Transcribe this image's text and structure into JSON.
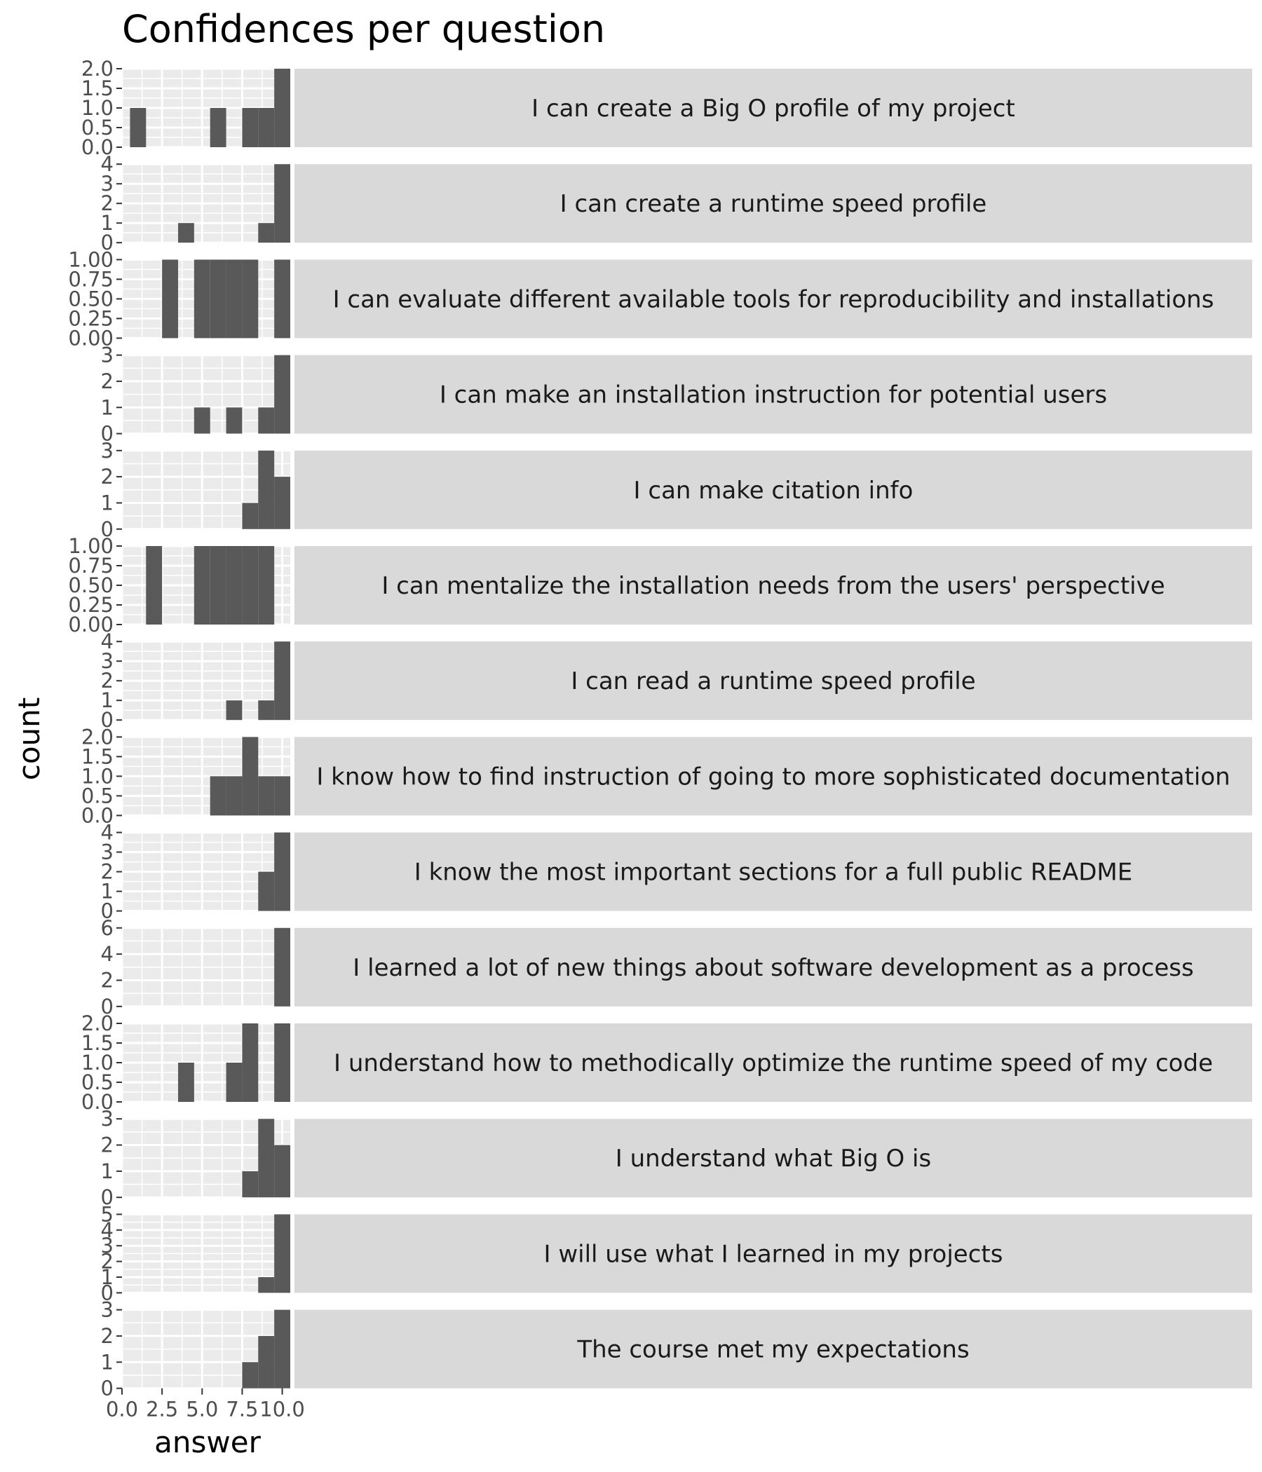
{
  "chart_data": {
    "type": "bar",
    "subtype": "histogram-facets",
    "title": "Confidences per question",
    "xlabel": "answer",
    "ylabel": "count",
    "xlim": [
      0,
      10.5
    ],
    "x_ticks": [
      0,
      2.5,
      5,
      7.5,
      10
    ],
    "x_tick_labels": [
      "0.0",
      "2.5",
      "5.0",
      "7.5",
      "10.0"
    ],
    "bin_width": 1,
    "grid": true,
    "legend": "none",
    "bar_color": "#595959",
    "panel_color": "#ebebeb",
    "strip_color": "#d9d9d9",
    "facets": [
      {
        "label": "I can create a Big O profile of my project",
        "ylim": [
          0,
          2
        ],
        "y_ticks": [
          0,
          0.5,
          1,
          1.5,
          2
        ],
        "y_tick_labels": [
          "0.0",
          "0.5",
          "1.0",
          "1.5",
          "2.0"
        ],
        "bins": [
          {
            "x": 1,
            "count": 1
          },
          {
            "x": 6,
            "count": 1
          },
          {
            "x": 8,
            "count": 1
          },
          {
            "x": 9,
            "count": 1
          },
          {
            "x": 10,
            "count": 2
          }
        ]
      },
      {
        "label": "I can create a runtime speed profile",
        "ylim": [
          0,
          4
        ],
        "y_ticks": [
          0,
          1,
          2,
          3,
          4
        ],
        "y_tick_labels": [
          "0",
          "1",
          "2",
          "3",
          "4"
        ],
        "bins": [
          {
            "x": 4,
            "count": 1
          },
          {
            "x": 9,
            "count": 1
          },
          {
            "x": 10,
            "count": 4
          }
        ]
      },
      {
        "label": "I can evaluate different available tools for reproducibility and installations",
        "ylim": [
          0,
          1
        ],
        "y_ticks": [
          0,
          0.25,
          0.5,
          0.75,
          1
        ],
        "y_tick_labels": [
          "0.00",
          "0.25",
          "0.50",
          "0.75",
          "1.00"
        ],
        "bins": [
          {
            "x": 3,
            "count": 1
          },
          {
            "x": 5,
            "count": 1
          },
          {
            "x": 6,
            "count": 1
          },
          {
            "x": 7,
            "count": 1
          },
          {
            "x": 8,
            "count": 1
          },
          {
            "x": 10,
            "count": 1
          }
        ]
      },
      {
        "label": "I can make an installation instruction for potential users",
        "ylim": [
          0,
          3
        ],
        "y_ticks": [
          0,
          1,
          2,
          3
        ],
        "y_tick_labels": [
          "0",
          "1",
          "2",
          "3"
        ],
        "bins": [
          {
            "x": 5,
            "count": 1
          },
          {
            "x": 7,
            "count": 1
          },
          {
            "x": 9,
            "count": 1
          },
          {
            "x": 10,
            "count": 3
          }
        ]
      },
      {
        "label": "I can make citation info",
        "ylim": [
          0,
          3
        ],
        "y_ticks": [
          0,
          1,
          2,
          3
        ],
        "y_tick_labels": [
          "0",
          "1",
          "2",
          "3"
        ],
        "bins": [
          {
            "x": 8,
            "count": 1
          },
          {
            "x": 9,
            "count": 3
          },
          {
            "x": 10,
            "count": 2
          }
        ]
      },
      {
        "label": "I can mentalize the installation needs from the users' perspective",
        "ylim": [
          0,
          1
        ],
        "y_ticks": [
          0,
          0.25,
          0.5,
          0.75,
          1
        ],
        "y_tick_labels": [
          "0.00",
          "0.25",
          "0.50",
          "0.75",
          "1.00"
        ],
        "bins": [
          {
            "x": 2,
            "count": 1
          },
          {
            "x": 5,
            "count": 1
          },
          {
            "x": 6,
            "count": 1
          },
          {
            "x": 7,
            "count": 1
          },
          {
            "x": 8,
            "count": 1
          },
          {
            "x": 9,
            "count": 1
          }
        ]
      },
      {
        "label": "I can read a runtime speed profile",
        "ylim": [
          0,
          4
        ],
        "y_ticks": [
          0,
          1,
          2,
          3,
          4
        ],
        "y_tick_labels": [
          "0",
          "1",
          "2",
          "3",
          "4"
        ],
        "bins": [
          {
            "x": 7,
            "count": 1
          },
          {
            "x": 9,
            "count": 1
          },
          {
            "x": 10,
            "count": 4
          }
        ]
      },
      {
        "label": "I know how to find instruction of going to more sophisticated documentation",
        "ylim": [
          0,
          2
        ],
        "y_ticks": [
          0,
          0.5,
          1,
          1.5,
          2
        ],
        "y_tick_labels": [
          "0.0",
          "0.5",
          "1.0",
          "1.5",
          "2.0"
        ],
        "bins": [
          {
            "x": 6,
            "count": 1
          },
          {
            "x": 7,
            "count": 1
          },
          {
            "x": 8,
            "count": 2
          },
          {
            "x": 9,
            "count": 1
          },
          {
            "x": 10,
            "count": 1
          }
        ]
      },
      {
        "label": "I know the most important sections for a full public README",
        "ylim": [
          0,
          4
        ],
        "y_ticks": [
          0,
          1,
          2,
          3,
          4
        ],
        "y_tick_labels": [
          "0",
          "1",
          "2",
          "3",
          "4"
        ],
        "bins": [
          {
            "x": 9,
            "count": 2
          },
          {
            "x": 10,
            "count": 4
          }
        ]
      },
      {
        "label": "I learned a lot of new things about software development as a process",
        "ylim": [
          0,
          6
        ],
        "y_ticks": [
          0,
          2,
          4,
          6
        ],
        "y_tick_labels": [
          "0",
          "2",
          "4",
          "6"
        ],
        "bins": [
          {
            "x": 10,
            "count": 6
          }
        ]
      },
      {
        "label": "I understand how to methodically optimize the runtime speed of my code",
        "ylim": [
          0,
          2
        ],
        "y_ticks": [
          0,
          0.5,
          1,
          1.5,
          2
        ],
        "y_tick_labels": [
          "0.0",
          "0.5",
          "1.0",
          "1.5",
          "2.0"
        ],
        "bins": [
          {
            "x": 4,
            "count": 1
          },
          {
            "x": 7,
            "count": 1
          },
          {
            "x": 8,
            "count": 2
          },
          {
            "x": 10,
            "count": 2
          }
        ]
      },
      {
        "label": "I understand what Big O is",
        "ylim": [
          0,
          3
        ],
        "y_ticks": [
          0,
          1,
          2,
          3
        ],
        "y_tick_labels": [
          "0",
          "1",
          "2",
          "3"
        ],
        "bins": [
          {
            "x": 8,
            "count": 1
          },
          {
            "x": 9,
            "count": 3
          },
          {
            "x": 10,
            "count": 2
          }
        ]
      },
      {
        "label": "I will use what I learned in my projects",
        "ylim": [
          0,
          5
        ],
        "y_ticks": [
          0,
          1,
          2,
          3,
          4,
          5
        ],
        "y_tick_labels": [
          "0",
          "1",
          "2",
          "3",
          "4",
          "5"
        ],
        "bins": [
          {
            "x": 9,
            "count": 1
          },
          {
            "x": 10,
            "count": 5
          }
        ]
      },
      {
        "label": "The course met my expectations",
        "ylim": [
          0,
          3
        ],
        "y_ticks": [
          0,
          1,
          2,
          3
        ],
        "y_tick_labels": [
          "0",
          "1",
          "2",
          "3"
        ],
        "bins": [
          {
            "x": 8,
            "count": 1
          },
          {
            "x": 9,
            "count": 2
          },
          {
            "x": 10,
            "count": 3
          }
        ]
      }
    ]
  }
}
